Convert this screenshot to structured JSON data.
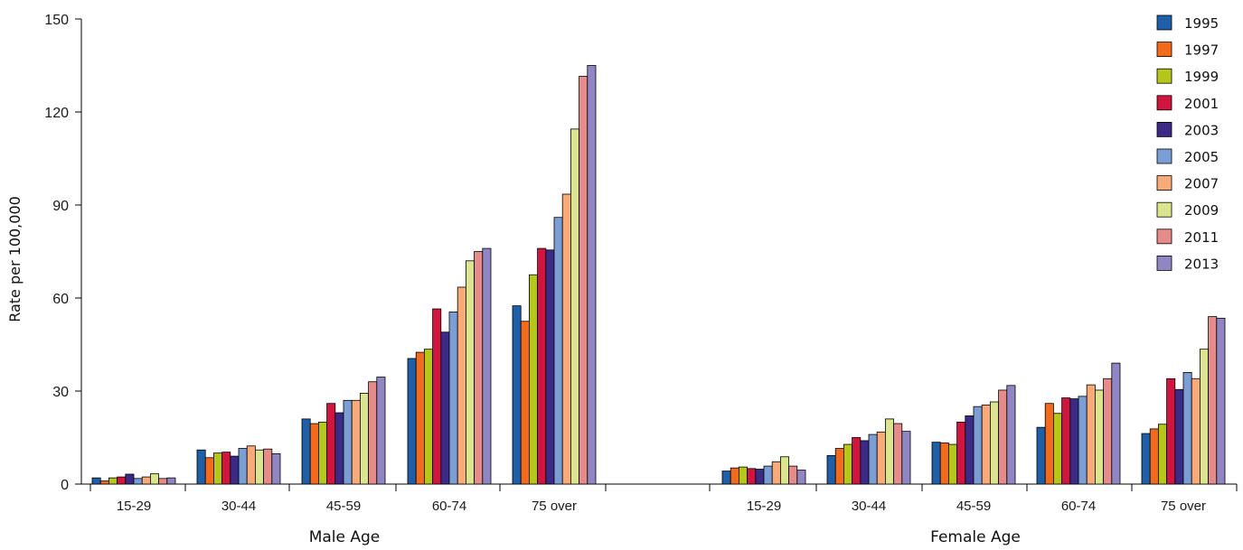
{
  "chart_data": {
    "type": "bar",
    "ylabel": "Rate per 100,000",
    "ylim": [
      0,
      150
    ],
    "yticks": [
      0,
      30,
      60,
      90,
      120,
      150
    ],
    "grid": false,
    "legend_position": "top-right",
    "categories": [
      "15-29",
      "30-44",
      "45-59",
      "60-74",
      "75 over"
    ],
    "groups": [
      {
        "label": "Male Age",
        "series": [
          {
            "name": "1995",
            "color": "#1f5fa8",
            "values": [
              2.0,
              11.0,
              21.0,
              40.5,
              57.5
            ]
          },
          {
            "name": "1997",
            "color": "#f26b1d",
            "values": [
              1.0,
              8.5,
              19.5,
              42.5,
              52.5
            ]
          },
          {
            "name": "1999",
            "color": "#b5c61c",
            "values": [
              2.0,
              10.0,
              20.0,
              43.5,
              67.5
            ]
          },
          {
            "name": "2001",
            "color": "#d0163e",
            "values": [
              2.3,
              10.3,
              26.0,
              56.5,
              76.0
            ]
          },
          {
            "name": "2003",
            "color": "#3b2a86",
            "values": [
              3.2,
              9.0,
              23.0,
              49.0,
              75.5
            ]
          },
          {
            "name": "2005",
            "color": "#7b9fd4",
            "values": [
              1.8,
              11.5,
              27.0,
              55.5,
              86.0
            ]
          },
          {
            "name": "2007",
            "color": "#f8aa78",
            "values": [
              2.3,
              12.3,
              27.0,
              63.5,
              93.5
            ]
          },
          {
            "name": "2009",
            "color": "#dbe58f",
            "values": [
              3.3,
              11.0,
              29.3,
              72.0,
              114.5
            ]
          },
          {
            "name": "2011",
            "color": "#e58b8a",
            "values": [
              1.8,
              11.3,
              33.0,
              75.0,
              131.5
            ]
          },
          {
            "name": "2013",
            "color": "#8f86c3",
            "values": [
              2.0,
              9.8,
              34.5,
              76.0,
              135.0
            ]
          }
        ]
      },
      {
        "label": "Female Age",
        "series": [
          {
            "name": "1995",
            "color": "#1f5fa8",
            "values": [
              4.2,
              9.2,
              13.5,
              18.3,
              16.3
            ]
          },
          {
            "name": "1997",
            "color": "#f26b1d",
            "values": [
              5.2,
              11.5,
              13.3,
              26.0,
              17.8
            ]
          },
          {
            "name": "1999",
            "color": "#b5c61c",
            "values": [
              5.5,
              12.8,
              12.8,
              22.8,
              19.3
            ]
          },
          {
            "name": "2001",
            "color": "#d0163e",
            "values": [
              5.0,
              15.0,
              20.0,
              27.8,
              34.0
            ]
          },
          {
            "name": "2003",
            "color": "#3b2a86",
            "values": [
              4.8,
              14.0,
              22.0,
              27.5,
              30.5
            ]
          },
          {
            "name": "2005",
            "color": "#7b9fd4",
            "values": [
              5.8,
              16.0,
              25.0,
              28.3,
              36.0
            ]
          },
          {
            "name": "2007",
            "color": "#f8aa78",
            "values": [
              7.2,
              16.8,
              25.5,
              32.0,
              34.0
            ]
          },
          {
            "name": "2009",
            "color": "#dbe58f",
            "values": [
              8.8,
              21.0,
              26.5,
              30.3,
              43.5
            ]
          },
          {
            "name": "2011",
            "color": "#e58b8a",
            "values": [
              5.8,
              19.5,
              30.3,
              34.0,
              54.0
            ]
          },
          {
            "name": "2013",
            "color": "#8f86c3",
            "values": [
              4.5,
              17.0,
              31.8,
              39.0,
              53.5
            ]
          }
        ]
      }
    ],
    "legend": [
      {
        "name": "1995",
        "color": "#1f5fa8"
      },
      {
        "name": "1997",
        "color": "#f26b1d"
      },
      {
        "name": "1999",
        "color": "#b5c61c"
      },
      {
        "name": "2001",
        "color": "#d0163e"
      },
      {
        "name": "2003",
        "color": "#3b2a86"
      },
      {
        "name": "2005",
        "color": "#7b9fd4"
      },
      {
        "name": "2007",
        "color": "#f8aa78"
      },
      {
        "name": "2009",
        "color": "#dbe58f"
      },
      {
        "name": "2011",
        "color": "#e58b8a"
      },
      {
        "name": "2013",
        "color": "#8f86c3"
      }
    ]
  }
}
